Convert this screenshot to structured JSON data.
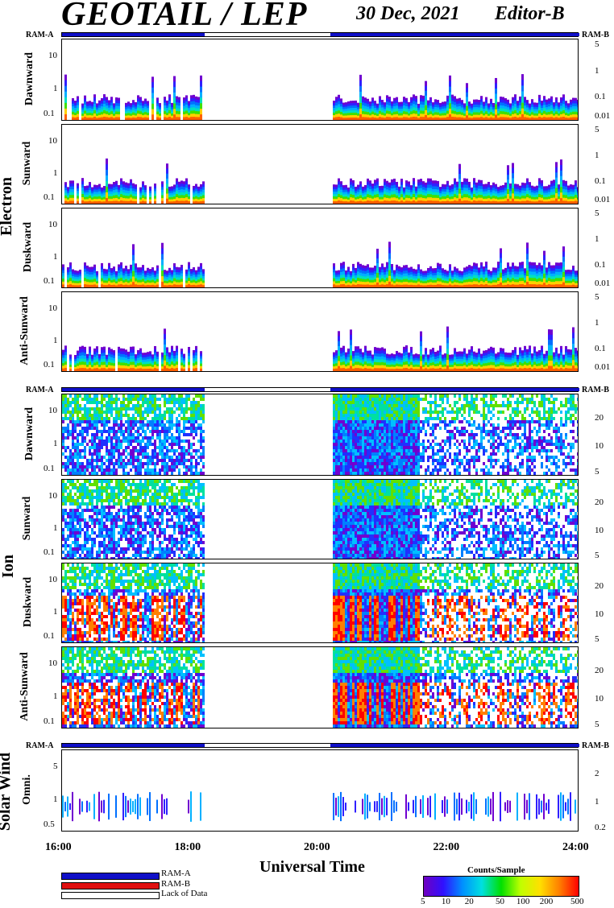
{
  "header": {
    "title": "GEOTAIL / LEP",
    "date": "30 Dec, 2021",
    "editor": "Editor-B"
  },
  "ram_labels": {
    "left": "RAM-A",
    "right": "RAM-B"
  },
  "groups": [
    {
      "name": "Electron",
      "panels": [
        {
          "label": "Dawnward",
          "left_ticks": [
            "10",
            "1",
            "0.1"
          ],
          "right_ticks": [
            "5",
            "1",
            "0.1",
            "0.01"
          ]
        },
        {
          "label": "Sunward",
          "left_ticks": [
            "10",
            "1",
            "0.1"
          ],
          "right_ticks": [
            "5",
            "1",
            "0.1",
            "0.01"
          ]
        },
        {
          "label": "Duskward",
          "left_ticks": [
            "10",
            "1",
            "0.1"
          ],
          "right_ticks": [
            "5",
            "1",
            "0.1",
            "0.01"
          ]
        },
        {
          "label": "Anti-Sunward",
          "left_ticks": [
            "10",
            "1",
            "0.1"
          ],
          "right_ticks": [
            "5",
            "1",
            "0.1",
            "0.01"
          ]
        }
      ]
    },
    {
      "name": "Ion",
      "panels": [
        {
          "label": "Dawnward",
          "left_ticks": [
            "10",
            "1",
            "0.1"
          ],
          "right_ticks": [
            "20",
            "10",
            "5"
          ]
        },
        {
          "label": "Sunward",
          "left_ticks": [
            "10",
            "1",
            "0.1"
          ],
          "right_ticks": [
            "20",
            "10",
            "5"
          ]
        },
        {
          "label": "Duskward",
          "left_ticks": [
            "10",
            "1",
            "0.1"
          ],
          "right_ticks": [
            "20",
            "10",
            "5"
          ]
        },
        {
          "label": "Anti-Sunward",
          "left_ticks": [
            "10",
            "1",
            "0.1"
          ],
          "right_ticks": [
            "20",
            "10",
            "5"
          ]
        }
      ]
    },
    {
      "name": "Solar Wind",
      "panels": [
        {
          "label": "Omni.",
          "left_ticks": [
            "5",
            "1",
            "0.5"
          ],
          "right_ticks": [
            "2",
            "1",
            "0.2"
          ]
        }
      ]
    }
  ],
  "chart_data": {
    "type": "heatmap",
    "title": "GEOTAIL / LEP",
    "xlabel": "Universal Time",
    "x_ticks": [
      "16:00",
      "18:00",
      "20:00",
      "22:00",
      "24:00"
    ],
    "x_range_hours": [
      16,
      24
    ],
    "data_gap_hours": [
      18.2,
      20.15
    ],
    "mode_bar": [
      {
        "mode": "RAM-A",
        "from": 16.0,
        "to": 18.2
      },
      {
        "mode": "Lack of Data",
        "from": 18.2,
        "to": 20.15
      },
      {
        "mode": "RAM-A",
        "from": 20.15,
        "to": 24.0
      }
    ],
    "legend": [
      {
        "name": "RAM-A",
        "color": "#1010c8"
      },
      {
        "name": "RAM-B",
        "color": "#e01010"
      },
      {
        "name": "Lack of Data",
        "color": "#ffffff"
      }
    ],
    "colorbar": {
      "title": "Counts/Sample",
      "ticks": [
        "5",
        "10",
        "20",
        "50",
        "100",
        "200",
        "500"
      ],
      "range": [
        5,
        500
      ],
      "scale": "log"
    }
  }
}
